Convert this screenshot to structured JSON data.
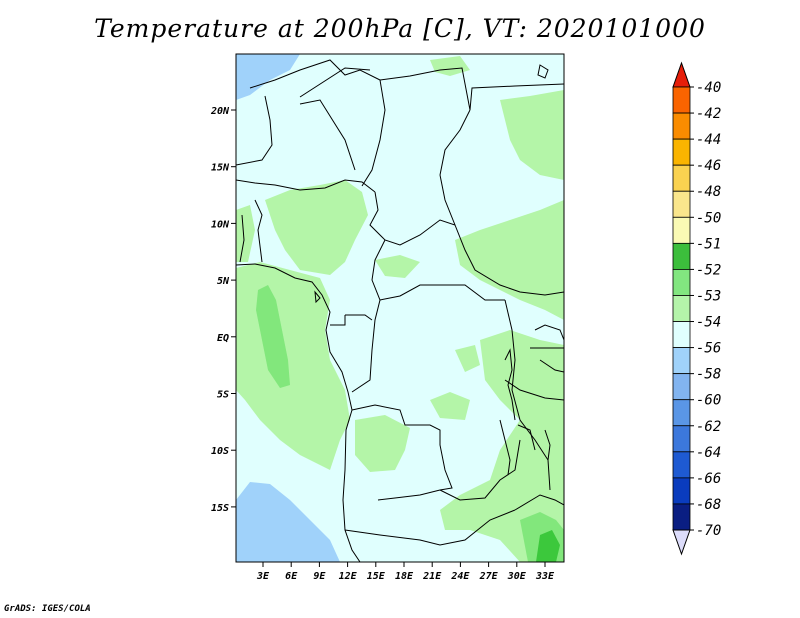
{
  "title": "Temperature at 200hPa [C], VT: 2020101000",
  "credit": "GrADS: IGES/COLA",
  "map": {
    "lon_ticks": [
      "3E",
      "6E",
      "9E",
      "12E",
      "15E",
      "18E",
      "21E",
      "24E",
      "27E",
      "30E",
      "33E"
    ],
    "lat_ticks": [
      "20N",
      "15N",
      "10N",
      "5N",
      "EQ",
      "5S",
      "10S",
      "15S"
    ],
    "colors": {
      "background_class": "#e0fffe",
      "light_green": "#b4f5a8",
      "mid_green": "#82e77c",
      "dark_green": "#3cc83c",
      "light_blue": "#a0d2fa",
      "border": "#000000"
    }
  },
  "colorbar": {
    "levels": [
      {
        "label": "-40",
        "color": "#fa3c00"
      },
      {
        "label": "-42",
        "color": "#fa6400"
      },
      {
        "label": "-44",
        "color": "#fa8c00"
      },
      {
        "label": "-46",
        "color": "#fab400"
      },
      {
        "label": "-48",
        "color": "#fad250"
      },
      {
        "label": "-50",
        "color": "#fae68c"
      },
      {
        "label": "-51",
        "color": "#fafab4"
      },
      {
        "label": "-52",
        "color": "#3cbe3c"
      },
      {
        "label": "-53",
        "color": "#82e680"
      },
      {
        "label": "-54",
        "color": "#b4f4aa"
      },
      {
        "label": "-56",
        "color": "#e0fffe"
      },
      {
        "label": "-58",
        "color": "#a0d2fa"
      },
      {
        "label": "-60",
        "color": "#82b4f0"
      },
      {
        "label": "-62",
        "color": "#5a96e6"
      },
      {
        "label": "-64",
        "color": "#3c78dc"
      },
      {
        "label": "-66",
        "color": "#1e5ad2"
      },
      {
        "label": "-68",
        "color": "#0a3cbe"
      },
      {
        "label": "-70",
        "color": "#0a1e82"
      }
    ],
    "top_cap_color": "#e61e0a",
    "bottom_cap_color": "#dcdcfa"
  }
}
